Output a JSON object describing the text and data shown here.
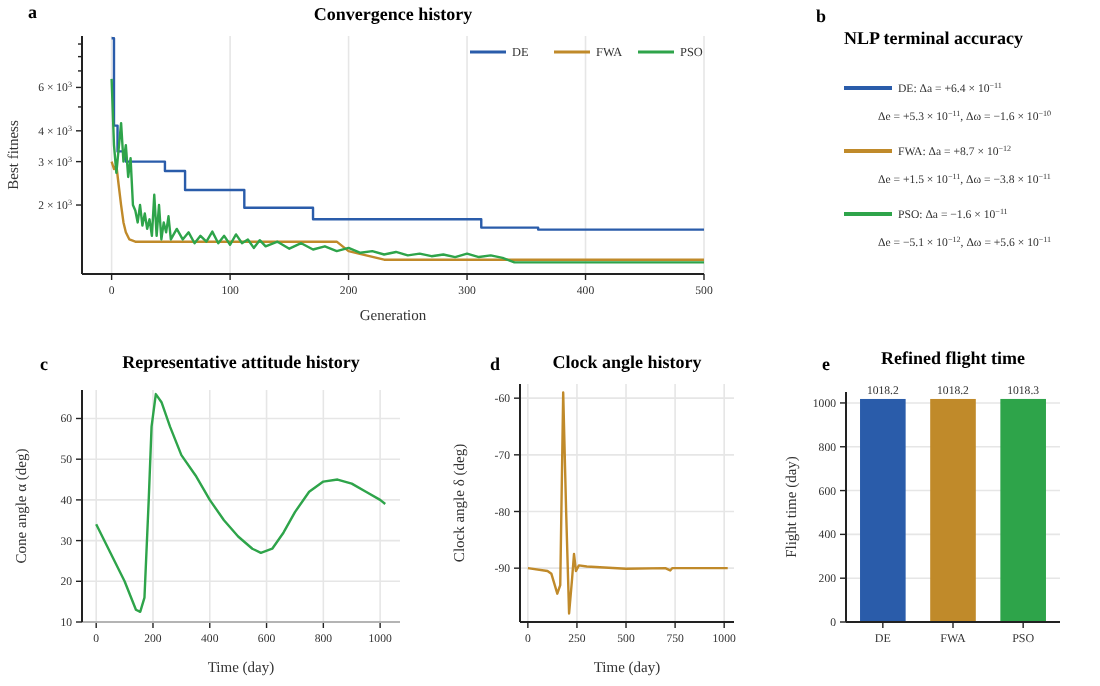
{
  "chart_data": [
    {
      "type": "line",
      "title": "Convergence history",
      "xlabel": "Generation",
      "ylabel": "Best fitness",
      "annotations": [
        "a"
      ],
      "xlim": [
        -25,
        500
      ],
      "xticks": [
        0,
        100,
        200,
        300,
        400,
        500
      ],
      "ylim": [
        1050,
        9700
      ],
      "yticks": [
        {
          "value": 2000,
          "label": "2 × 10$^{3}$"
        },
        {
          "value": 3000,
          "label": "3 × 10$^{3}$"
        },
        {
          "value": 4000,
          "label": "4 × 10$^{3}$"
        },
        {
          "value": 5000,
          "label": null
        },
        {
          "value": 6000,
          "label": "6 × 10$^{3}$"
        },
        {
          "value": 7000,
          "label": null
        },
        {
          "value": 8000,
          "label": null
        },
        {
          "value": 9000,
          "label": null
        }
      ],
      "log": true,
      "grid": "x",
      "legend": "top right",
      "series": [
        {
          "name": "DE",
          "type": "step",
          "color": "#2a5caa",
          "x": [
            0,
            2,
            5,
            12,
            45,
            62,
            112,
            170,
            312,
            360,
            500
          ],
          "values": [
            9500,
            4200,
            3300,
            3000,
            2750,
            2300,
            1950,
            1750,
            1620,
            1590,
            1590
          ]
        },
        {
          "name": "FWA",
          "type": "line",
          "color": "#c08a2a",
          "x": [
            0,
            2,
            4,
            6,
            8,
            10,
            12,
            15,
            20,
            190,
            200,
            230,
            500
          ],
          "values": [
            3000,
            2800,
            2900,
            2400,
            2000,
            1700,
            1550,
            1450,
            1420,
            1420,
            1300,
            1200,
            1200
          ]
        },
        {
          "name": "PSO",
          "type": "line",
          "color": "#2ea44a",
          "x": [
            0,
            2,
            4,
            6,
            8,
            10,
            12,
            14,
            16,
            18,
            20,
            22,
            24,
            26,
            28,
            30,
            32,
            34,
            36,
            38,
            40,
            42,
            44,
            46,
            48,
            50,
            55,
            60,
            65,
            70,
            75,
            80,
            85,
            90,
            95,
            100,
            105,
            110,
            115,
            120,
            125,
            130,
            140,
            150,
            160,
            170,
            180,
            190,
            200,
            210,
            220,
            230,
            240,
            250,
            260,
            270,
            280,
            290,
            300,
            310,
            320,
            330,
            340,
            500
          ],
          "values": [
            6500,
            3500,
            2700,
            3400,
            4300,
            3000,
            3500,
            2600,
            3100,
            2000,
            1900,
            1700,
            2000,
            1650,
            1850,
            1600,
            1750,
            1500,
            2200,
            1500,
            2000,
            1450,
            1700,
            1550,
            1800,
            1450,
            1600,
            1450,
            1550,
            1400,
            1500,
            1420,
            1560,
            1400,
            1500,
            1380,
            1520,
            1400,
            1450,
            1340,
            1440,
            1360,
            1420,
            1330,
            1400,
            1320,
            1360,
            1300,
            1340,
            1280,
            1300,
            1260,
            1290,
            1250,
            1270,
            1240,
            1260,
            1230,
            1270,
            1230,
            1250,
            1220,
            1170,
            1170
          ]
        }
      ]
    },
    {
      "type": "other",
      "title": "NLP terminal accuracy",
      "annotations": [
        "b",
        "DE: Δa = +6.4 × 10$^{−11}$",
        "Δe = +5.3 × 10$^{−11}$, Δω = −1.6 × 10$^{−10}$",
        "FWA: Δa = +8.7 × 10$^{−12}$",
        "Δe = +1.5 × 10$^{−11}$, Δω = −3.8 × 10$^{−11}$",
        "PSO: Δa = −1.6 × 10$^{−11}$",
        "Δe = −5.1 × 10$^{−12}$, Δω = +5.6 × 10$^{−11}$"
      ]
    },
    {
      "type": "line",
      "title": "Representative attitude history",
      "xlabel": "Time (day)",
      "ylabel": "Cone angle α (deg)",
      "annotations": [
        "c"
      ],
      "xlim": [
        -50,
        1070
      ],
      "xticks": [
        0,
        200,
        400,
        600,
        800,
        1000
      ],
      "ylim": [
        10,
        67
      ],
      "yticks": [
        10,
        20,
        30,
        40,
        50,
        60
      ],
      "grid": true,
      "series": [
        {
          "color": "#2ea44a",
          "x": [
            0,
            50,
            100,
            140,
            155,
            170,
            185,
            195,
            210,
            230,
            260,
            300,
            350,
            400,
            450,
            500,
            550,
            580,
            620,
            660,
            700,
            750,
            800,
            850,
            900,
            950,
            1000,
            1018
          ],
          "values": [
            34,
            27,
            20,
            13,
            12.5,
            16,
            40,
            58,
            66,
            64,
            58,
            51,
            46,
            40,
            35,
            31,
            28,
            27,
            28,
            32,
            37,
            42,
            44.5,
            45,
            44,
            42,
            40,
            39
          ]
        }
      ]
    },
    {
      "type": "line",
      "title": "Clock angle history",
      "xlabel": "Time (day)",
      "ylabel": "Clock angle δ (deg)",
      "annotations": [
        "d"
      ],
      "xlim": [
        -40,
        1050
      ],
      "xticks": [
        0,
        250,
        500,
        750,
        1000
      ],
      "ylim": [
        -99.5,
        -57.5
      ],
      "yticks": [
        -90,
        -80,
        -70,
        -60
      ],
      "grid": true,
      "series": [
        {
          "color": "#c08a2a",
          "x": [
            0,
            100,
            120,
            150,
            165,
            180,
            195,
            210,
            225,
            235,
            245,
            260,
            300,
            500,
            700,
            725,
            735,
            1018
          ],
          "values": [
            -90,
            -90.5,
            -91,
            -94.5,
            -93,
            -59,
            -80,
            -98,
            -92,
            -87.5,
            -90.5,
            -89.5,
            -89.7,
            -90.1,
            -90,
            -90.4,
            -90,
            -90
          ]
        }
      ]
    },
    {
      "type": "bar",
      "title": "Refined flight time",
      "ylabel": "Flight time (day)",
      "annotations": [
        "e"
      ],
      "categories": [
        "DE",
        "FWA",
        "PSO"
      ],
      "values": [
        1018.2,
        1018.2,
        1018.3
      ],
      "colors": [
        "#2a5caa",
        "#c08a2a",
        "#2ea44a"
      ],
      "ylim": [
        0,
        1050
      ],
      "yticks": [
        0,
        200,
        400,
        600,
        800,
        1000
      ],
      "grid": "y",
      "data_labels": true
    }
  ]
}
